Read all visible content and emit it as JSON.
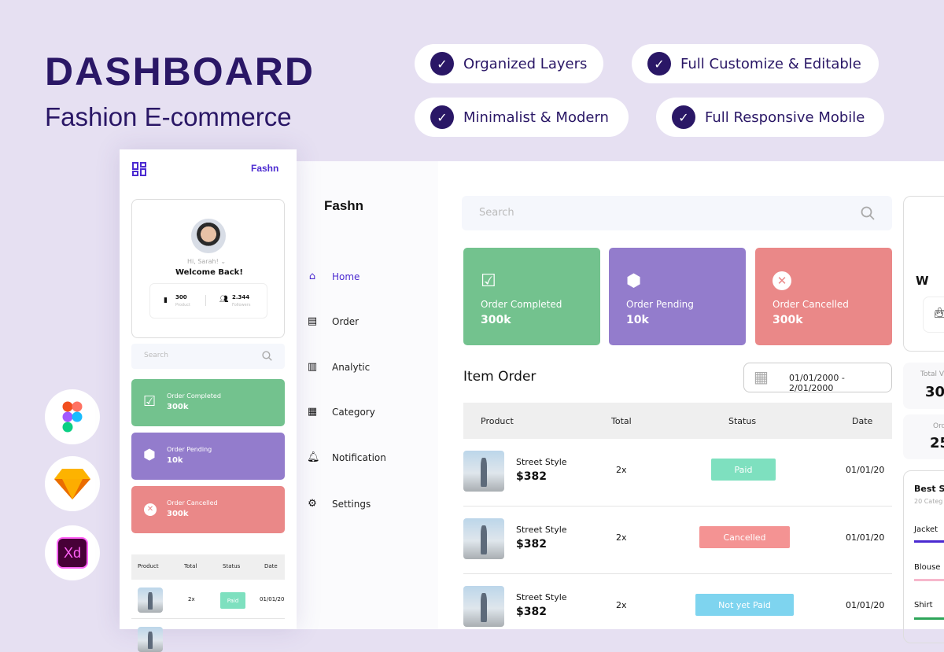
{
  "header": {
    "title": "DASHBOARD",
    "subtitle": "Fashion E-commerce"
  },
  "features": [
    "Organized Layers",
    "Full Customize & Editable",
    "Minimalist & Modern",
    "Full Responsive Mobile"
  ],
  "tools": [
    "figma-icon",
    "sketch-icon",
    "xd-icon"
  ],
  "tool_xd_label": "Xd",
  "brand": "Fashn",
  "colors": {
    "accent": "#4b2ad1",
    "title": "#2a1766",
    "completed": "#73c28e",
    "pending": "#937ccc",
    "cancelled": "#ea8888",
    "paid": "#7ee0bf",
    "cancelled_badge": "#f49393",
    "not_paid": "#7ed4ef"
  },
  "sidebar": {
    "items": [
      {
        "label": "Home",
        "icon": "home-icon"
      },
      {
        "label": "Order",
        "icon": "order-list-icon"
      },
      {
        "label": "Analytic",
        "icon": "bar-chart-icon"
      },
      {
        "label": "Category",
        "icon": "grid-icon"
      },
      {
        "label": "Notification",
        "icon": "bell-icon"
      },
      {
        "label": "Settings",
        "icon": "gear-icon"
      }
    ]
  },
  "search": {
    "placeholder": "Search"
  },
  "stats": [
    {
      "label": "Order Completed",
      "value": "300k"
    },
    {
      "label": "Order Pending",
      "value": "10k"
    },
    {
      "label": "Order Cancelled",
      "value": "300k"
    }
  ],
  "item_order": {
    "title": "Item Order",
    "date_range": "01/01/2000 - 2/01/2000",
    "columns": [
      "Product",
      "Total",
      "Status",
      "Date"
    ],
    "rows": [
      {
        "name": "Street Style",
        "price": "$382",
        "total": "2x",
        "status": "Paid",
        "date": "01/01/20"
      },
      {
        "name": "Street Style",
        "price": "$382",
        "total": "2x",
        "status": "Cancelled",
        "date": "01/01/20"
      },
      {
        "name": "Street Style",
        "price": "$382",
        "total": "2x",
        "status": "Not yet Paid",
        "date": "01/01/20"
      }
    ]
  },
  "right": {
    "welcome_partial": "W",
    "total_label": "Total V",
    "total_value": "30",
    "order_label": "Ord",
    "order_value": "25",
    "best_title": "Best Se",
    "best_sub": "20 Categ",
    "best_items": [
      {
        "label": "Jacket",
        "color": "#4b2ad1"
      },
      {
        "label": "Blouse",
        "color": "#f7b7cc"
      },
      {
        "label": "Shirt",
        "color": "#2ea55a"
      }
    ]
  },
  "mobile": {
    "greeting": "Hi, Sarah!",
    "welcome": "Welcome Back!",
    "product_count": "300",
    "product_label": "Product",
    "followers_count": "2.344",
    "followers_label": "Followers",
    "search_placeholder": "Search",
    "table_columns": [
      "Product",
      "Total",
      "Status",
      "Date"
    ],
    "row": {
      "total": "2x",
      "status": "Paid",
      "date": "01/01/20"
    }
  }
}
